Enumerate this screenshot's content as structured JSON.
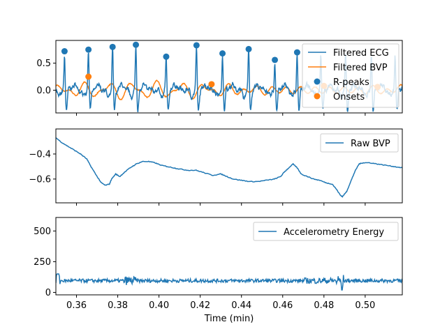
{
  "chart_data": [
    {
      "type": "line",
      "panel": "top",
      "xlim": [
        0.35,
        0.518
      ],
      "ylim": [
        -0.42,
        0.92
      ],
      "yticks": [
        0.0,
        0.5
      ],
      "ytick_labels": [
        "0.0",
        "0.5"
      ],
      "legend_position": "upper-right",
      "series": [
        {
          "name": "Filtered ECG",
          "kind": "line",
          "color": "#1f77b4",
          "beats": [
            0.3542,
            0.3658,
            0.3775,
            0.3888,
            0.4035,
            0.4182,
            0.4308,
            0.4435,
            0.4562,
            0.467,
            0.4785,
            0.4905,
            0.503,
            0.5145
          ]
        },
        {
          "name": "Filtered BVP",
          "kind": "line",
          "color": "#ff7f0e"
        },
        {
          "name": "R-peaks",
          "kind": "scatter",
          "color": "#1f77b4",
          "points": [
            [
              0.3542,
              0.72
            ],
            [
              0.3658,
              0.75
            ],
            [
              0.3775,
              0.8
            ],
            [
              0.3888,
              0.84
            ],
            [
              0.4035,
              0.62
            ],
            [
              0.4182,
              0.83
            ],
            [
              0.4308,
              0.68
            ],
            [
              0.4435,
              0.76
            ],
            [
              0.4562,
              0.56
            ],
            [
              0.467,
              0.7
            ]
          ]
        },
        {
          "name": "Onsets",
          "kind": "scatter",
          "color": "#ff7f0e",
          "points": [
            [
              0.3658,
              0.25
            ],
            [
              0.4255,
              0.11
            ],
            [
              0.48,
              0.08
            ],
            [
              0.506,
              0.06
            ]
          ]
        }
      ]
    },
    {
      "type": "line",
      "panel": "middle",
      "xlim": [
        0.35,
        0.518
      ],
      "ylim": [
        -0.79,
        -0.2
      ],
      "yticks": [
        -0.6,
        -0.4
      ],
      "ytick_labels": [
        "−0.6",
        "−0.4"
      ],
      "legend_position": "upper-right",
      "series": [
        {
          "name": "Raw BVP",
          "color": "#1f77b4",
          "x": [
            0.35,
            0.353,
            0.356,
            0.359,
            0.362,
            0.365,
            0.367,
            0.37,
            0.372,
            0.374,
            0.376,
            0.377,
            0.379,
            0.381,
            0.383,
            0.386,
            0.389,
            0.392,
            0.395,
            0.398,
            0.401,
            0.404,
            0.407,
            0.41,
            0.414,
            0.418,
            0.422,
            0.426,
            0.43,
            0.433,
            0.436,
            0.44,
            0.444,
            0.448,
            0.452,
            0.456,
            0.459,
            0.461,
            0.463,
            0.465,
            0.467,
            0.469,
            0.472,
            0.475,
            0.478,
            0.481,
            0.484,
            0.486,
            0.488,
            0.489,
            0.491,
            0.493,
            0.495,
            0.497,
            0.499,
            0.502,
            0.506,
            0.51,
            0.514,
            0.518
          ],
          "y": [
            -0.27,
            -0.31,
            -0.34,
            -0.37,
            -0.4,
            -0.44,
            -0.5,
            -0.58,
            -0.63,
            -0.65,
            -0.64,
            -0.6,
            -0.56,
            -0.58,
            -0.55,
            -0.51,
            -0.48,
            -0.46,
            -0.46,
            -0.47,
            -0.49,
            -0.5,
            -0.51,
            -0.52,
            -0.53,
            -0.53,
            -0.55,
            -0.57,
            -0.56,
            -0.58,
            -0.6,
            -0.61,
            -0.62,
            -0.62,
            -0.61,
            -0.6,
            -0.58,
            -0.54,
            -0.51,
            -0.48,
            -0.51,
            -0.56,
            -0.58,
            -0.6,
            -0.61,
            -0.63,
            -0.64,
            -0.68,
            -0.73,
            -0.74,
            -0.7,
            -0.62,
            -0.54,
            -0.48,
            -0.47,
            -0.47,
            -0.48,
            -0.49,
            -0.5,
            -0.51
          ]
        }
      ]
    },
    {
      "type": "line",
      "panel": "bottom",
      "xlim": [
        0.35,
        0.518
      ],
      "ylim": [
        -20,
        610
      ],
      "yticks": [
        0,
        250,
        500
      ],
      "ytick_labels": [
        "0",
        "250",
        "500"
      ],
      "xticks": [
        0.36,
        0.38,
        0.4,
        0.42,
        0.44,
        0.46,
        0.48,
        0.5
      ],
      "xtick_labels": [
        "0.36",
        "0.38",
        "0.40",
        "0.42",
        "0.44",
        "0.46",
        "0.48",
        "0.50"
      ],
      "xlabel": "Time (min)",
      "legend_position": "upper-right",
      "series": [
        {
          "name": "Accelerometry Energy",
          "color": "#1f77b4",
          "baseline": 95
        }
      ]
    }
  ]
}
